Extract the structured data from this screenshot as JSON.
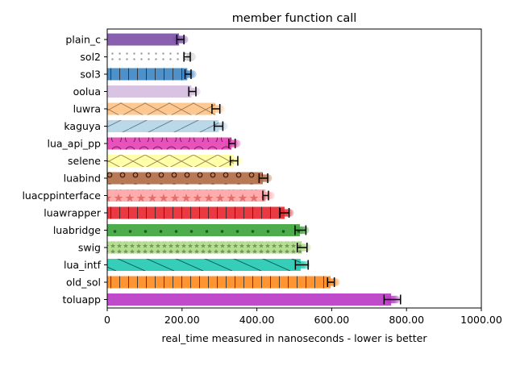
{
  "chart_data": {
    "type": "bar",
    "orientation": "horizontal",
    "title": "member function call",
    "xlabel": "real_time measured in nanoseconds - lower is better",
    "ylabel": "",
    "xlim": [
      0,
      1000
    ],
    "x_ticks": [
      0,
      200,
      400,
      600,
      800,
      1000
    ],
    "x_tick_labels": [
      "0",
      "200.00",
      "400.00",
      "600.00",
      "800.00",
      "1000.00"
    ],
    "grid": false,
    "legend": "none",
    "categories": [
      "plain_c",
      "sol2",
      "sol3",
      "oolua",
      "luwra",
      "kaguya",
      "lua_api_pp",
      "selene",
      "luabind",
      "luacppinterface",
      "luawrapper",
      "luabridge",
      "swig",
      "lua_intf",
      "old_sol",
      "toluapp"
    ],
    "values": [
      192,
      212,
      214,
      225,
      289,
      298,
      332,
      338,
      416,
      423,
      474,
      515,
      520,
      517,
      597,
      759
    ],
    "error_low": [
      186,
      205,
      208,
      218,
      280,
      286,
      325,
      329,
      406,
      416,
      462,
      502,
      508,
      503,
      589,
      740
    ],
    "error_high": [
      205,
      222,
      224,
      237,
      301,
      309,
      342,
      349,
      429,
      431,
      486,
      531,
      534,
      537,
      607,
      784
    ],
    "colors": [
      "#7b4fa6",
      "#ffffff",
      "#3a85c2",
      "#d4bce0",
      "#ffc285",
      "#b4d4e7",
      "#e43fb4",
      "#ffff9e",
      "#b06a43",
      "#ffa3a3",
      "#e8232b",
      "#3aa43a",
      "#b0d98a",
      "#20c9b0",
      "#ff8a1c",
      "#b836c4"
    ],
    "hatches": [
      "none",
      "dots-small",
      "vlines",
      "none",
      "cross-diag",
      "diag",
      "circles",
      "cross-diag",
      "circles-ring",
      "stars",
      "vlines",
      "dots",
      "stars-dense",
      "backdiag",
      "vlines",
      "none"
    ]
  }
}
